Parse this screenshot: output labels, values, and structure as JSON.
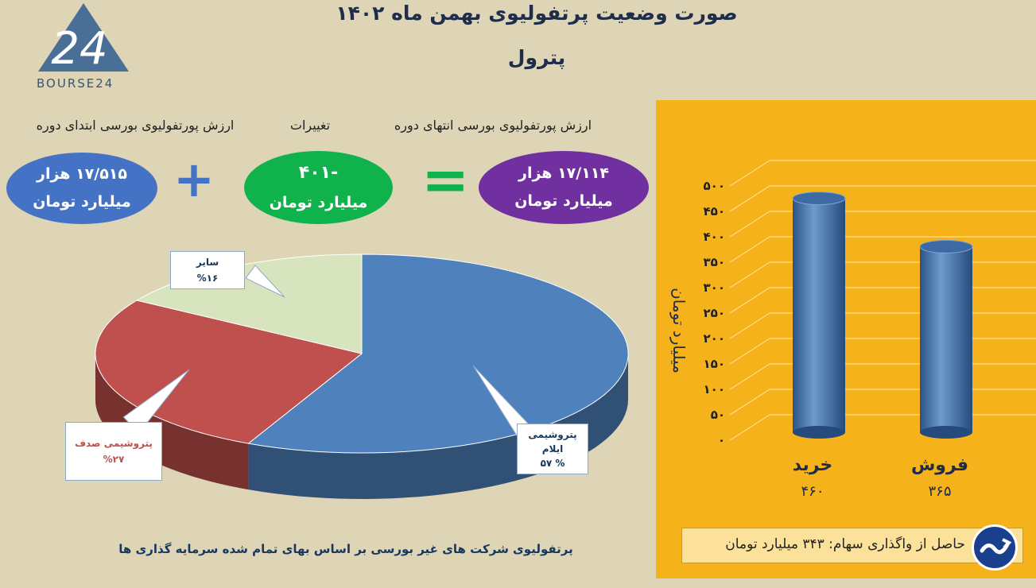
{
  "header": {
    "title": "صورت وضعیت پرتفولیوی بهمن ماه ۱۴۰۲",
    "subtitle": "پترول",
    "logo_text": "BOURSE24",
    "logo_digits": "24"
  },
  "summary": {
    "start_label": "ارزش پورتفولیوی بورسی ابتدای دوره",
    "change_label": "تغییرات",
    "end_label": "ارزش پورتفولیوی بورسی انتهای دوره",
    "start_value": "۱۷/۵۱۵ هزار",
    "start_unit": "میلیارد تومان",
    "change_value": "-۴۰۱",
    "change_unit": "میلیارد تومان",
    "end_value": "۱۷/۱۱۴ هزار",
    "end_unit": "میلیارد تومان",
    "plus_sign": "+",
    "equals_sign": "="
  },
  "pie_caption": "پرتفولیوی شرکت های غیر بورسی  بر اساس  بهای تمام شده سرمایه گذاری ها",
  "bottom_note": "حاصل از واگذاری سهام: ۳۴۳ میلیارد تومان",
  "colors": {
    "background": "#ded5b6",
    "panel": "#f6b21a",
    "pie_blue": "#4f81bd",
    "pie_red": "#c0504d",
    "pie_green": "#d7e4bd",
    "bar": "#4f7fb5"
  },
  "chart_data": [
    {
      "type": "pie",
      "slices": [
        {
          "name": "پتروشیمی ایلام",
          "name_line1": "پتروشیمی",
          "name_line2": "ایلام",
          "percent": 57,
          "percent_label": "% ۵۷",
          "color": "#4f81bd"
        },
        {
          "name": "پتروشیمی صدف",
          "percent": 27,
          "percent_label": "%۲۷",
          "color": "#c0504d"
        },
        {
          "name": "سایر",
          "percent": 16,
          "percent_label": "%۱۶",
          "color": "#d7e4bd"
        }
      ]
    },
    {
      "type": "bar",
      "categories": [
        "خرید",
        "فروش"
      ],
      "values": [
        460,
        365
      ],
      "value_labels": [
        "۴۶۰",
        "۳۶۵"
      ],
      "ylabel": "میلیارد تومان",
      "ylim": [
        0,
        500
      ],
      "yticks": [
        0,
        50,
        100,
        150,
        200,
        250,
        300,
        350,
        400,
        450,
        500
      ],
      "ytick_labels": [
        "۰",
        "۵۰",
        "۱۰۰",
        "۱۵۰",
        "۲۰۰",
        "۲۵۰",
        "۳۰۰",
        "۳۵۰",
        "۴۰۰",
        "۴۵۰",
        "۵۰۰"
      ],
      "grid": true
    }
  ]
}
